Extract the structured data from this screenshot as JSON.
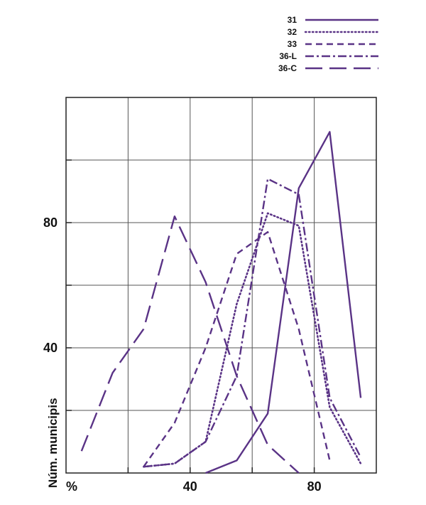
{
  "chart_data": {
    "type": "line",
    "title": "",
    "xlabel": "%",
    "ylabel": "Núm. municipis",
    "xlim": [
      0,
      100
    ],
    "ylim": [
      0,
      120
    ],
    "x_ticks": [
      20,
      40,
      60,
      80
    ],
    "x_tick_labels": [
      "",
      "40",
      "",
      "80"
    ],
    "y_ticks": [
      20,
      40,
      60,
      80,
      100
    ],
    "y_tick_labels": [
      "",
      "40",
      "",
      "80",
      ""
    ],
    "grid": true,
    "legend_position": "top-right",
    "line_color": "#5a3386",
    "series": [
      {
        "name": "31",
        "dash": "solid",
        "x": [
          45,
          55,
          65,
          75,
          85,
          95
        ],
        "y": [
          0,
          4,
          19,
          91,
          109,
          24
        ]
      },
      {
        "name": "32",
        "dash": "dotted",
        "x": [
          25,
          35,
          45,
          55,
          65,
          75,
          85,
          95
        ],
        "y": [
          2,
          3,
          10,
          54,
          83,
          79,
          21,
          3
        ]
      },
      {
        "name": "33",
        "dash": "dashed",
        "x": [
          25,
          35,
          45,
          55,
          65,
          75,
          85
        ],
        "y": [
          2,
          16,
          40,
          70,
          77,
          46,
          4
        ]
      },
      {
        "name": "36-L",
        "dash": "dashdot",
        "x": [
          25,
          35,
          45,
          55,
          65,
          75,
          85,
          95
        ],
        "y": [
          2,
          3,
          10,
          31,
          94,
          89,
          24,
          5
        ]
      },
      {
        "name": "36-C",
        "dash": "longdash",
        "x": [
          5,
          15,
          25,
          35,
          45,
          55,
          65,
          75
        ],
        "y": [
          7,
          32,
          46,
          82,
          61,
          31,
          9,
          0
        ]
      }
    ]
  }
}
